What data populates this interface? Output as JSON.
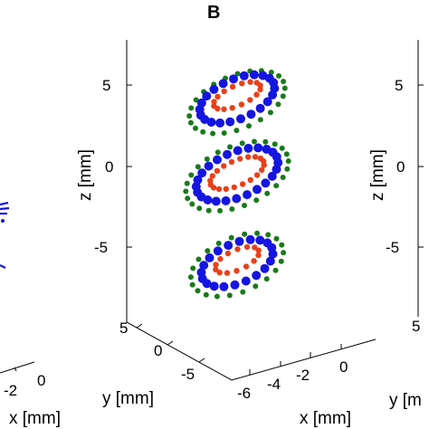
{
  "chart_data": [
    {
      "panel": "left (cropped)",
      "type": "scatter",
      "title": "",
      "xlabel": "x [mm]",
      "ylabel": "",
      "x_ticks": [
        "-2",
        "0"
      ],
      "colors": {
        "blue": "#1515e0"
      }
    },
    {
      "panel": "B",
      "type": "scatter",
      "title": "B",
      "xlabel": "x [mm]",
      "ylabel": "y [mm]",
      "zlabel": "z [mm]",
      "x_ticks": [
        "-6",
        "-4",
        "-2",
        "0"
      ],
      "y_ticks": [
        "5",
        "0",
        "-5"
      ],
      "z_ticks": [
        "5",
        "0",
        "-5"
      ],
      "zlim": [
        -8,
        8
      ],
      "series": [
        {
          "color": "#1a7a1a",
          "rings": [
            {
              "z": 4.0,
              "rx": 5.6,
              "ry": 3.2,
              "n": 24
            },
            {
              "z": -0.6,
              "rx": 6.0,
              "ry": 3.6,
              "n": 26
            },
            {
              "z": -6.1,
              "rx": 5.4,
              "ry": 3.3,
              "n": 22
            }
          ]
        },
        {
          "color": "#1515e0",
          "rings": [
            {
              "z": 4.2,
              "rx": 4.4,
              "ry": 2.4,
              "n": 22
            },
            {
              "z": -0.5,
              "rx": 4.8,
              "ry": 2.7,
              "n": 24
            },
            {
              "z": -6.0,
              "rx": 4.2,
              "ry": 2.4,
              "n": 20
            }
          ]
        },
        {
          "color": "#e8401a",
          "rings": [
            {
              "z": 4.4,
              "rx": 2.8,
              "ry": 1.2,
              "n": 16
            },
            {
              "z": -0.4,
              "rx": 3.2,
              "ry": 1.5,
              "n": 20
            },
            {
              "z": -5.8,
              "rx": 2.6,
              "ry": 1.2,
              "n": 14
            }
          ]
        }
      ]
    },
    {
      "panel": "right (cropped)",
      "type": "scatter",
      "title": "",
      "xlabel": "",
      "ylabel": "y [m",
      "zlabel": "z [mm]",
      "z_ticks": [
        "5",
        "0",
        "-5"
      ],
      "y_ticks": [
        "5"
      ]
    }
  ]
}
